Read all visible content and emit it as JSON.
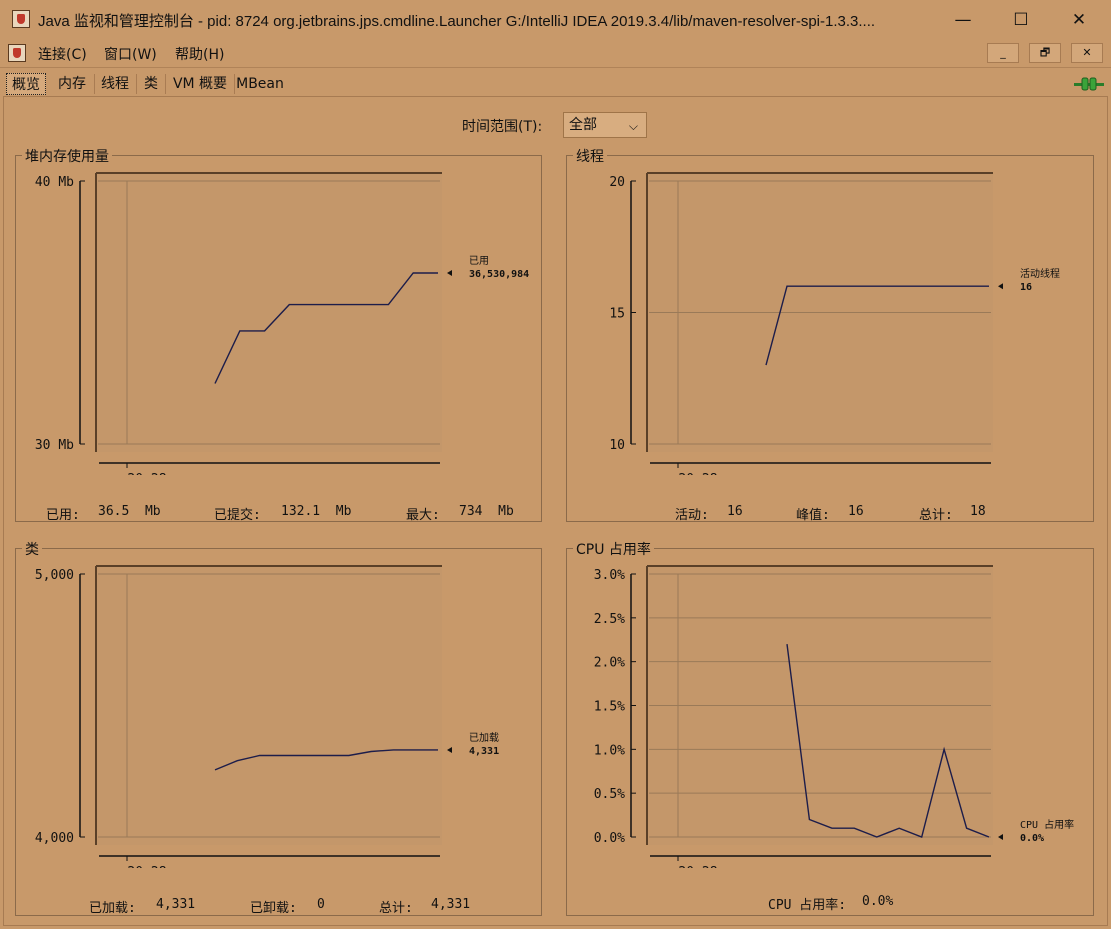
{
  "window": {
    "title": "Java 监视和管理控制台 - pid: 8724 org.jetbrains.jps.cmdline.Launcher G:/IntelliJ IDEA 2019.3.4/lib/maven-resolver-spi-1.3.3....",
    "minimize": "—",
    "maximize": "☐",
    "close": "✕"
  },
  "menu": {
    "connect": "连接(C)",
    "window": "窗口(W)",
    "help": "帮助(H)"
  },
  "mdi": {
    "minimize": "_",
    "restore": "🗗",
    "close": "✕"
  },
  "tabs": [
    "概览",
    "内存",
    "线程",
    "类",
    "VM 概要",
    "MBean"
  ],
  "time_range": {
    "label": "时间范围(T):",
    "value": "全部"
  },
  "colors": {
    "background": "#c8996a",
    "plot_bg": "#c4976a",
    "line": "#1d1d4a",
    "grid": "#9a7a58"
  },
  "charts": [
    {
      "id": "heap",
      "title": "堆内存使用量",
      "yticks": [
        "40 Mb",
        "30 Mb"
      ],
      "xtick": "20:28",
      "legend_name": "已用",
      "legend_value": "36,530,984",
      "stats": [
        {
          "label": "已用:",
          "value": "36.5  Mb"
        },
        {
          "label": "已提交:",
          "value": "132.1  Mb"
        },
        {
          "label": "最大:",
          "value": "734  Mb"
        }
      ]
    },
    {
      "id": "threads",
      "title": "线程",
      "yticks": [
        "20",
        "15",
        "10"
      ],
      "xtick": "20:28",
      "legend_name": "活动线程",
      "legend_value": "16",
      "stats": [
        {
          "label": "活动:",
          "value": "16"
        },
        {
          "label": "峰值:",
          "value": "16"
        },
        {
          "label": "总计:",
          "value": "18"
        }
      ]
    },
    {
      "id": "classes",
      "title": "类",
      "yticks": [
        "5,000",
        "4,000"
      ],
      "xtick": "20:28",
      "legend_name": "已加载",
      "legend_value": "4,331",
      "stats": [
        {
          "label": "已加载:",
          "value": "4,331"
        },
        {
          "label": "已卸载:",
          "value": "0"
        },
        {
          "label": "总计:",
          "value": "4,331"
        }
      ]
    },
    {
      "id": "cpu",
      "title": "CPU 占用率",
      "yticks": [
        "3.0%",
        "2.5%",
        "2.0%",
        "1.5%",
        "1.0%",
        "0.5%",
        "0.0%"
      ],
      "xtick": "20:28",
      "legend_name": "CPU 占用率",
      "legend_value": "0.0%",
      "stats": [
        {
          "label": "CPU 占用率:",
          "value": "0.0%"
        }
      ]
    }
  ],
  "chart_data": [
    {
      "type": "line",
      "series": [
        {
          "name": "已用",
          "y": [
            32.3,
            34.3,
            34.3,
            35.3,
            35.3,
            35.3,
            35.3,
            35.3,
            36.5,
            36.5
          ]
        }
      ],
      "ylim": [
        30,
        40
      ]
    },
    {
      "type": "line",
      "series": [
        {
          "name": "活动线程",
          "y": [
            13,
            16,
            16,
            16,
            16,
            16,
            16,
            16,
            16,
            16,
            16
          ]
        }
      ],
      "ylim": [
        10,
        20
      ]
    },
    {
      "type": "line",
      "series": [
        {
          "name": "已加载",
          "y": [
            4255,
            4290,
            4310,
            4310,
            4310,
            4310,
            4310,
            4325,
            4331,
            4331,
            4331
          ]
        }
      ],
      "ylim": [
        4000,
        5000
      ]
    },
    {
      "type": "line",
      "series": [
        {
          "name": "CPU 占用率",
          "y": [
            2.2,
            0.2,
            0.1,
            0.1,
            0.0,
            0.1,
            0.0,
            1.0,
            0.1,
            0.0
          ]
        }
      ],
      "ylim": [
        0,
        3
      ]
    }
  ]
}
